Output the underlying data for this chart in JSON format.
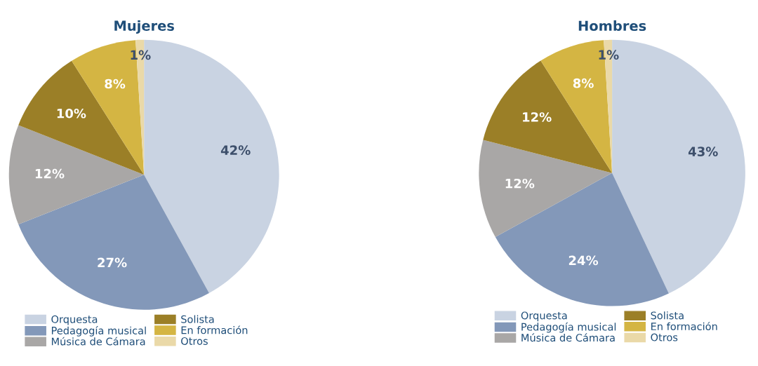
{
  "chart_data": [
    {
      "type": "pie",
      "title": "Mujeres",
      "categories": [
        "Orquesta",
        "Pedagogía musical",
        "Música de Cámara",
        "Solista",
        "En formación",
        "Otros"
      ],
      "values": [
        42,
        27,
        12,
        10,
        8,
        1
      ],
      "value_labels": [
        "42%",
        "27%",
        "12%",
        "10%",
        "8%",
        "1%"
      ],
      "colors": [
        "#c9d3e2",
        "#8398b9",
        "#a9a7a6",
        "#9b7f27",
        "#d4b543",
        "#ead9a8"
      ],
      "legend": "bottom"
    },
    {
      "type": "pie",
      "title": "Hombres",
      "categories": [
        "Orquesta",
        "Pedagogía musical",
        "Música de Cámara",
        "Solista",
        "En formación",
        "Otros"
      ],
      "values": [
        43,
        24,
        12,
        12,
        8,
        1
      ],
      "value_labels": [
        "43%",
        "24%",
        "12%",
        "12%",
        "8%",
        "1%"
      ],
      "colors": [
        "#c9d3e2",
        "#8398b9",
        "#a9a7a6",
        "#9b7f27",
        "#d4b543",
        "#ead9a8"
      ],
      "legend": "bottom"
    }
  ]
}
